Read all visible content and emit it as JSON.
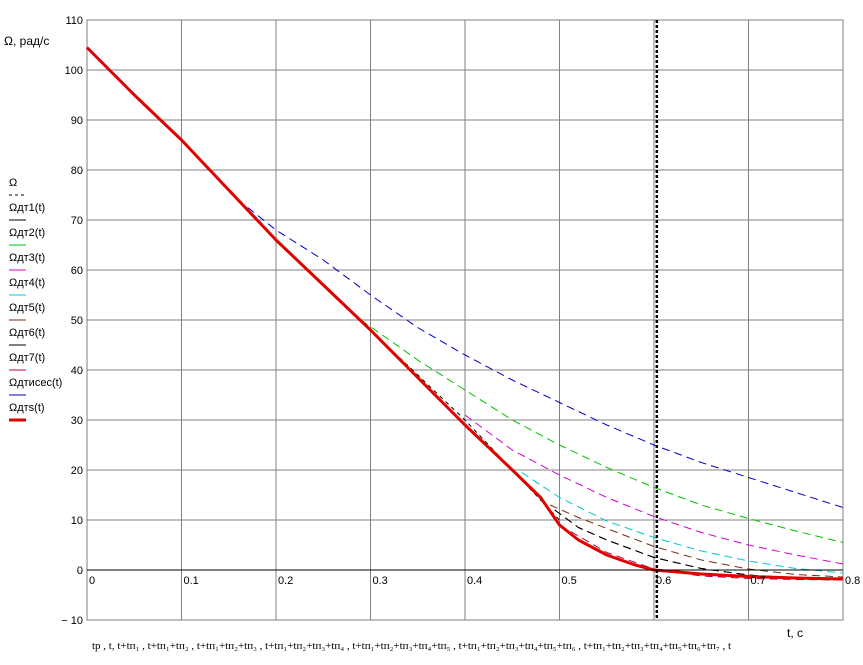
{
  "chart_data": {
    "type": "line",
    "title": "",
    "ylabel": "Ω, рад/с",
    "xlabel": "t, c",
    "xlim": [
      0,
      0.8
    ],
    "ylim": [
      -10,
      110
    ],
    "x_ticks": [
      0,
      0.1,
      0.2,
      0.3,
      0.4,
      0.5,
      0.6,
      0.7,
      0.8
    ],
    "x_tick_labels": [
      "0",
      "0.1",
      "0.2",
      "0.3",
      "0.4",
      "0.5",
      "0.6",
      "0.7",
      "0.8"
    ],
    "y_ticks": [
      -10,
      0,
      10,
      20,
      30,
      40,
      50,
      60,
      70,
      80,
      90,
      100,
      110
    ],
    "y_tick_labels": [
      "− 10",
      "0",
      "10",
      "20",
      "30",
      "40",
      "50",
      "60",
      "70",
      "80",
      "90",
      "100",
      "110"
    ],
    "grid": true,
    "legend_position": "left",
    "marker_line": {
      "x": 0.603,
      "style": "dotted",
      "color": "#000000"
    },
    "bottom_expression": "tp , t, t+tп₁ , t+tп₁+tп₂ , t+tп₁+tп₂+tп₃ , t+tп₁+tп₂+tп₃+tп₄ , t+tп₁+tп₂+tп₃+tп₄+tп₅ , t+tп₁+tп₂+tп₃+tп₄+tп₅+tп₆ , t+tп₁+tп₂+tп₃+tп₄+tп₅+tп₆+tп₇ , t",
    "series": [
      {
        "name": "Ω",
        "color": "#000000",
        "dash": "4,4",
        "width": 1,
        "x": [
          0,
          0.1,
          0.2,
          0.3,
          0.4,
          0.5
        ],
        "y": [
          104.5,
          86,
          66,
          48,
          30,
          10
        ]
      },
      {
        "name": "Ωдт1(t)",
        "color": "#000000",
        "dash": "8,5",
        "width": 1,
        "x": [
          0.495,
          0.52,
          0.55,
          0.6,
          0.65,
          0.7,
          0.75,
          0.8
        ],
        "y": [
          12,
          8.5,
          6,
          2.5,
          0.3,
          -1,
          -1.6,
          -1.8
        ]
      },
      {
        "name": "Ωдт2(t)",
        "color": "#00c000",
        "dash": "8,5",
        "width": 1,
        "x": [
          0.29,
          0.35,
          0.4,
          0.45,
          0.5,
          0.55,
          0.6,
          0.65,
          0.7,
          0.75,
          0.8
        ],
        "y": [
          50,
          42,
          36,
          30,
          25,
          20.5,
          16.5,
          13,
          10.3,
          7.8,
          5.5
        ]
      },
      {
        "name": "Ωдт3(t)",
        "color": "#d000d0",
        "dash": "8,5",
        "width": 1,
        "x": [
          0.4,
          0.45,
          0.5,
          0.55,
          0.6,
          0.65,
          0.7,
          0.75,
          0.8
        ],
        "y": [
          31,
          24,
          19,
          14.5,
          10.7,
          7.5,
          5,
          3,
          1.2
        ]
      },
      {
        "name": "Ωдт4(t)",
        "color": "#00c8d0",
        "dash": "8,5",
        "width": 1,
        "x": [
          0.46,
          0.5,
          0.55,
          0.6,
          0.65,
          0.7,
          0.75,
          0.8
        ],
        "y": [
          19.5,
          14.5,
          9.8,
          6.5,
          3.8,
          1.8,
          0.3,
          -0.6
        ]
      },
      {
        "name": "Ωдт5(t)",
        "color": "#7a3010",
        "dash": "8,5",
        "width": 1,
        "x": [
          0.49,
          0.52,
          0.55,
          0.6,
          0.65,
          0.7,
          0.75,
          0.8
        ],
        "y": [
          13,
          10.5,
          8.3,
          4.7,
          2,
          0.2,
          -0.9,
          -1.4
        ]
      },
      {
        "name": "Ωдт6(t)",
        "color": "#000000",
        "dash": "8,5",
        "width": 1,
        "x": [
          0.495,
          0.52,
          0.55,
          0.6,
          0.65,
          0.7,
          0.75,
          0.8
        ],
        "y": [
          12,
          8.5,
          6,
          2.5,
          0.3,
          -1,
          -1.6,
          -1.8
        ]
      },
      {
        "name": "Ωдт7(t)",
        "color": "#c0003c",
        "dash": "8,5",
        "width": 1,
        "x": [
          0.5,
          0.55,
          0.6,
          0.65,
          0.7,
          0.75,
          0.8
        ],
        "y": [
          9,
          3.5,
          0.2,
          -1.2,
          -1.7,
          -1.9,
          -2
        ]
      },
      {
        "name": "Ωдтисес(t)",
        "color": "#0000c8",
        "dash": "8,5",
        "width": 1,
        "x": [
          0.17,
          0.2,
          0.25,
          0.3,
          0.35,
          0.4,
          0.45,
          0.5,
          0.55,
          0.6,
          0.65,
          0.7,
          0.75,
          0.8
        ],
        "y": [
          72.5,
          68,
          62,
          55,
          48.5,
          43,
          38,
          33.5,
          29,
          25,
          21.5,
          18.5,
          15.5,
          12.5
        ]
      },
      {
        "name": "Ωдтs(t)",
        "color": "#e00000",
        "dash": "",
        "width": 3,
        "x": [
          0,
          0.05,
          0.1,
          0.15,
          0.2,
          0.25,
          0.3,
          0.35,
          0.4,
          0.45,
          0.48,
          0.5,
          0.52,
          0.55,
          0.58,
          0.6,
          0.65,
          0.7,
          0.75,
          0.8
        ],
        "y": [
          104.5,
          95,
          86,
          76,
          66,
          57,
          48,
          38.5,
          29,
          20,
          14.5,
          9,
          6,
          3,
          1,
          0,
          -0.8,
          -1.3,
          -1.6,
          -1.8
        ]
      }
    ]
  }
}
